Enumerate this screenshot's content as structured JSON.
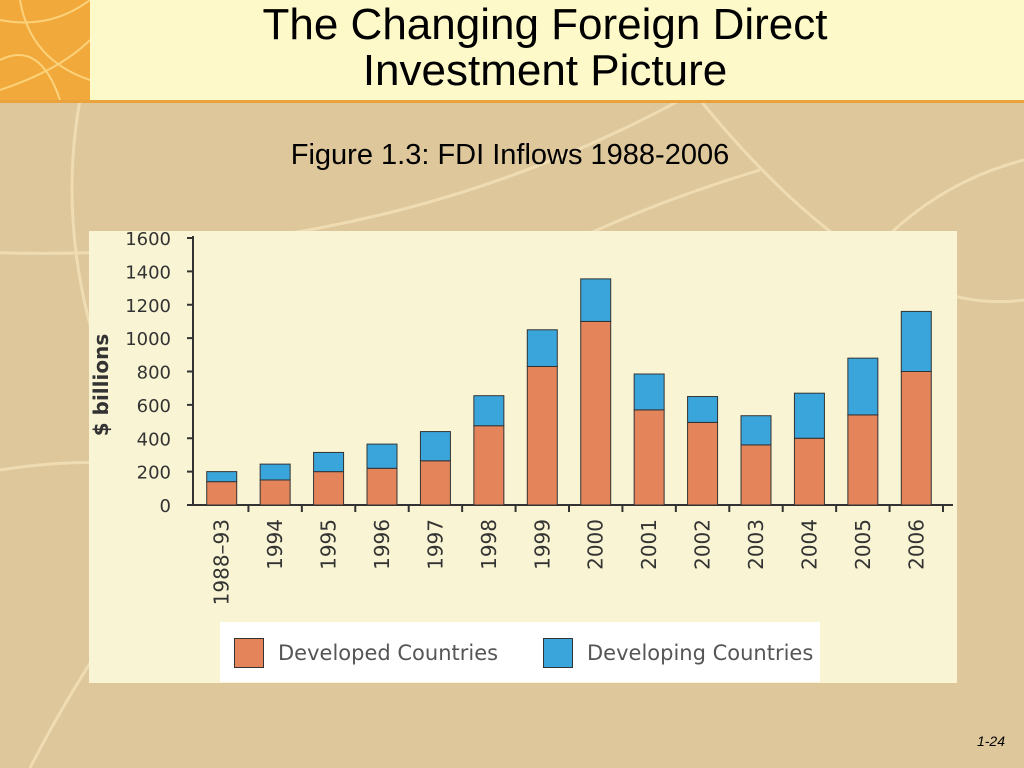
{
  "slide": {
    "title_line1": "The Changing Foreign Direct",
    "title_line2": "Investment Picture",
    "figure_caption": "Figure 1.3: FDI Inflows 1988-2006",
    "page_number": "1-24"
  },
  "colors": {
    "developed": "#e3845a",
    "developing": "#3aa5db",
    "background": "#dec79a",
    "header": "#fdf9c9",
    "accent": "#f2a93c"
  },
  "chart_data": {
    "type": "bar",
    "stacked": true,
    "ylabel": "$ billions",
    "xlabel": "",
    "ylim": [
      0,
      1600
    ],
    "yticks": [
      0,
      200,
      400,
      600,
      800,
      1000,
      1200,
      1400,
      1600
    ],
    "grid": false,
    "legend_position": "bottom",
    "categories": [
      "1988–93",
      "1994",
      "1995",
      "1996",
      "1997",
      "1998",
      "1999",
      "2000",
      "2001",
      "2002",
      "2003",
      "2004",
      "2005",
      "2006"
    ],
    "series": [
      {
        "name": "Developed Countries",
        "values": [
          140,
          150,
          200,
          220,
          265,
          475,
          830,
          1100,
          570,
          495,
          360,
          400,
          540,
          800
        ]
      },
      {
        "name": "Developing Countries",
        "values": [
          60,
          95,
          115,
          145,
          175,
          180,
          220,
          255,
          215,
          155,
          175,
          270,
          340,
          360
        ]
      }
    ]
  }
}
